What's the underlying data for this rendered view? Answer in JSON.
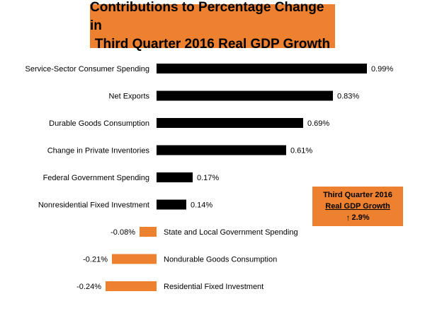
{
  "chart_data": {
    "type": "bar",
    "orientation": "horizontal",
    "title_lines": [
      "Contributions  to Percentage Change in",
      "Third Quarter 2016 Real GDP Growth"
    ],
    "categories": [
      "Service-Sector Consumer Spending",
      "Net Exports",
      "Durable Goods Consumption",
      "Change in Private Inventories",
      "Federal Government Spending",
      "Nonresidential Fixed Investment",
      "State and Local Government Spending",
      "Nondurable Goods Consumption",
      "Residential Fixed Investment"
    ],
    "values": [
      0.99,
      0.83,
      0.69,
      0.61,
      0.17,
      0.14,
      -0.08,
      -0.21,
      -0.24
    ],
    "value_labels": [
      "0.99%",
      "0.83%",
      "0.69%",
      "0.61%",
      "0.17%",
      "0.14%",
      "-0.08%",
      "-0.21%",
      "-0.24%"
    ],
    "xlim": [
      -0.24,
      1.0
    ],
    "grid": false,
    "legend": "none",
    "colors": {
      "positive": "#000000",
      "negative": "#ee8130",
      "title_bg": "#ee8130"
    }
  },
  "annotation": {
    "line1": "Third Quarter 2016",
    "line2": "Real GDP Growth",
    "arrow": "↑",
    "value": "2.9%"
  }
}
